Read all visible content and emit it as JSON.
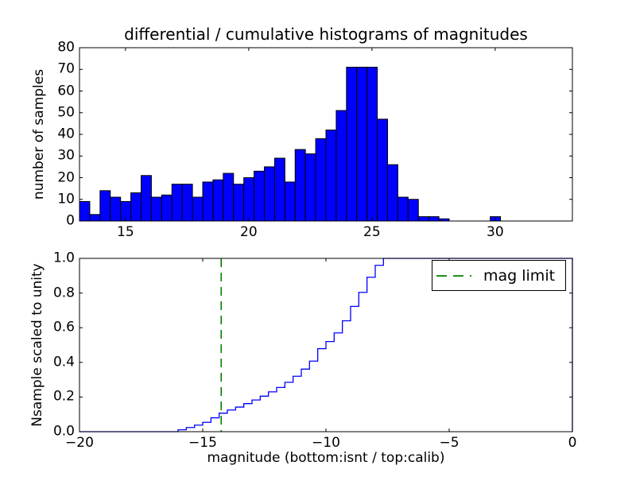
{
  "figure": {
    "background": "#ffffff"
  },
  "chart_data": [
    {
      "type": "bar",
      "subplot": "top",
      "title": "differential / cumulative histograms of magnitudes",
      "ylabel": "number of samples",
      "xlim": [
        13.1333,
        33.1333
      ],
      "ylim": [
        0,
        80
      ],
      "grid": false,
      "x_ticks": {
        "values": [
          15,
          20,
          25,
          30
        ],
        "labels": [
          "15",
          "20",
          "25",
          "30"
        ]
      },
      "y_ticks": {
        "values": [
          0,
          10,
          20,
          30,
          40,
          50,
          60,
          70,
          80
        ],
        "labels": [
          "0",
          "10",
          "20",
          "30",
          "40",
          "50",
          "60",
          "70",
          "80"
        ]
      },
      "bin_start": 13.1333,
      "bin_width": 0.41667,
      "counts": [
        9,
        3,
        14,
        11,
        9,
        13,
        21,
        11,
        12,
        17,
        17,
        11,
        18,
        19,
        22,
        17,
        20,
        23,
        25,
        29,
        18,
        33,
        31,
        38,
        42,
        51,
        71,
        71,
        71,
        47,
        26,
        11,
        10,
        2,
        2,
        1,
        0,
        0,
        0,
        0,
        2,
        0,
        0,
        0,
        0,
        0,
        0,
        0
      ],
      "bar_color": "#0000ff",
      "bar_edge_color": "#000000"
    },
    {
      "type": "line",
      "subplot": "bottom",
      "style": "cumulative-step",
      "ylabel": "Nsample scaled to unity",
      "xlabel": "magnitude (bottom:isnt / top:calib)",
      "xlim": [
        -20,
        0
      ],
      "ylim": [
        0.0,
        1.0
      ],
      "grid": false,
      "x_ticks": {
        "values": [
          -20,
          -15,
          -10,
          -5,
          0
        ],
        "labels": [
          "−20",
          "−15",
          "−10",
          "−5",
          "0"
        ]
      },
      "y_ticks": {
        "values": [
          0.0,
          0.2,
          0.4,
          0.6,
          0.8,
          1.0
        ],
        "labels": [
          "0.0",
          "0.2",
          "0.4",
          "0.6",
          "0.8",
          "1.0"
        ]
      },
      "line_color": "#0000ff",
      "step_start": -16.0,
      "step_width": 0.33333,
      "cumulative_levels": [
        0.011,
        0.024,
        0.038,
        0.054,
        0.08,
        0.107,
        0.125,
        0.142,
        0.162,
        0.183,
        0.205,
        0.23,
        0.255,
        0.285,
        0.32,
        0.361,
        0.407,
        0.479,
        0.52,
        0.57,
        0.64,
        0.723,
        0.804,
        0.891,
        0.96
      ],
      "final_level": 1.0,
      "final_level_until": 0,
      "mag_limit_line": {
        "x": -14.25,
        "color": "#008000",
        "style": "dashed",
        "label": "mag limit"
      },
      "legend": {
        "position": "upper right",
        "entries": [
          {
            "label": "mag limit",
            "color": "#008000",
            "style": "dashed"
          }
        ]
      }
    }
  ]
}
